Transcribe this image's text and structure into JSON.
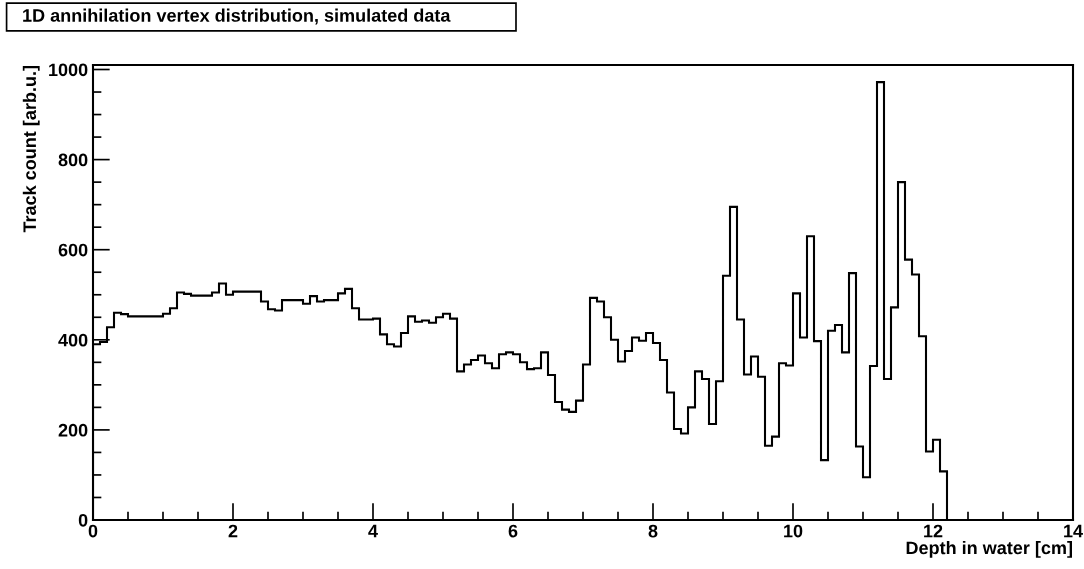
{
  "chart_data": {
    "type": "histogram",
    "title": "1D annihilation vertex distribution, simulated data",
    "xlabel": "Depth in water [cm]",
    "ylabel": "Track count [arb.u.]",
    "bins": [
      0,
      0.1,
      0.2,
      0.3,
      0.4,
      0.5,
      0.6,
      0.7,
      0.8,
      0.9,
      1.0,
      1.1,
      1.2,
      1.3,
      1.4,
      1.5,
      1.6,
      1.7,
      1.8,
      1.9,
      2.0,
      2.1,
      2.2,
      2.3,
      2.4,
      2.5,
      2.6,
      2.7,
      2.8,
      2.9,
      3.0,
      3.1,
      3.2,
      3.3,
      3.4,
      3.5,
      3.6,
      3.7,
      3.8,
      3.9,
      4.0,
      4.1,
      4.2,
      4.3,
      4.4,
      4.5,
      4.6,
      4.7,
      4.8,
      4.9,
      5.0,
      5.1,
      5.2,
      5.3,
      5.4,
      5.5,
      5.6,
      5.7,
      5.8,
      5.9,
      6.0,
      6.1,
      6.2,
      6.3,
      6.4,
      6.5,
      6.6,
      6.7,
      6.8,
      6.9,
      7.0,
      7.1,
      7.2,
      7.3,
      7.4,
      7.5,
      7.6,
      7.7,
      7.8,
      7.9,
      8.0,
      8.1,
      8.2,
      8.3,
      8.4,
      8.5,
      8.6,
      8.7,
      8.8,
      8.9,
      9.0,
      9.1,
      9.2,
      9.3,
      9.4,
      9.5,
      9.6,
      9.7,
      9.8,
      9.9,
      10.0,
      10.1,
      10.2,
      10.3,
      10.4,
      10.5,
      10.6,
      10.7,
      10.8,
      10.9,
      11.0,
      11.1,
      11.2,
      11.3,
      11.4,
      11.5,
      11.6,
      11.7,
      11.8,
      11.9,
      12.0,
      12.1,
      12.2
    ],
    "values": [
      390,
      395,
      428,
      460,
      457,
      452,
      452,
      452,
      452,
      452,
      458,
      470,
      505,
      502,
      498,
      498,
      498,
      505,
      525,
      500,
      507,
      507,
      507,
      507,
      485,
      468,
      465,
      488,
      488,
      488,
      480,
      497,
      485,
      488,
      488,
      503,
      513,
      470,
      445,
      445,
      447,
      412,
      390,
      385,
      415,
      452,
      440,
      443,
      438,
      450,
      458,
      447,
      330,
      345,
      355,
      365,
      348,
      337,
      368,
      372,
      368,
      350,
      335,
      337,
      372,
      322,
      262,
      245,
      240,
      265,
      345,
      493,
      485,
      450,
      400,
      352,
      375,
      405,
      398,
      415,
      393,
      355,
      283,
      202,
      192,
      250,
      330,
      313,
      213,
      308,
      542,
      695,
      445,
      323,
      363,
      318,
      165,
      185,
      348,
      343,
      503,
      405,
      630,
      397,
      133,
      420,
      433,
      372,
      548,
      163,
      95,
      342,
      972,
      313,
      472,
      750,
      578,
      545,
      408,
      152,
      178,
      108
    ],
    "color": "#000000",
    "xlim": [
      0,
      14
    ],
    "xticks": [
      0,
      2,
      4,
      6,
      8,
      10,
      12,
      14
    ],
    "ylim": [
      0,
      1010
    ],
    "yticks": [
      0,
      200,
      400,
      600,
      800,
      1000
    ],
    "grid": false
  }
}
